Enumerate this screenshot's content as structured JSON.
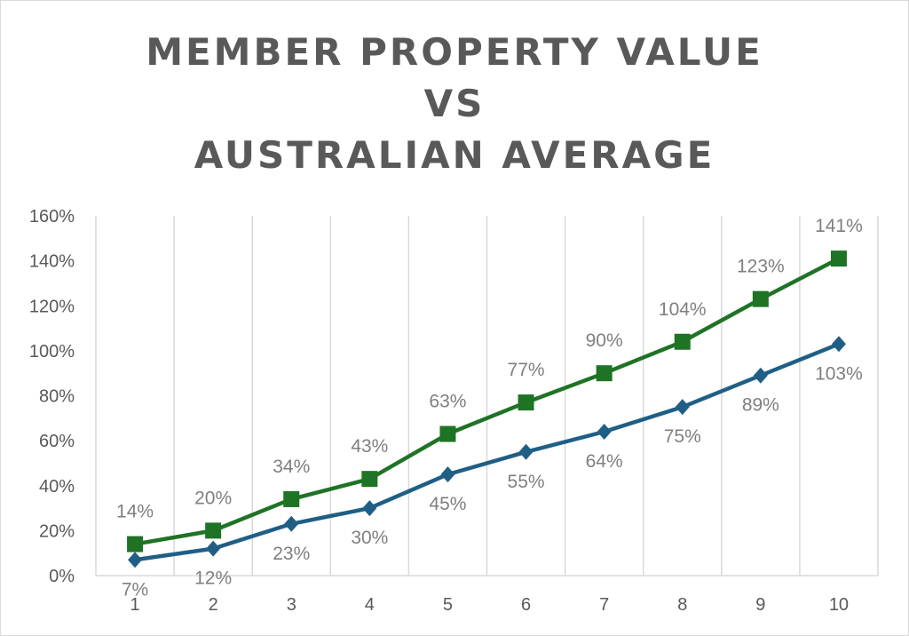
{
  "chart_data": {
    "type": "line",
    "title_lines": [
      "MEMBER PROPERTY VALUE",
      "VS",
      "AUSTRALIAN AVERAGE"
    ],
    "categories": [
      "1",
      "2",
      "3",
      "4",
      "5",
      "6",
      "7",
      "8",
      "9",
      "10"
    ],
    "series": [
      {
        "name": "Member Property Value",
        "color": "#1f7325",
        "marker": "square",
        "values": [
          14,
          20,
          34,
          43,
          63,
          77,
          90,
          104,
          123,
          141
        ],
        "labels": [
          "14%",
          "20%",
          "34%",
          "43%",
          "63%",
          "77%",
          "90%",
          "104%",
          "123%",
          "141%"
        ],
        "label_position": "above"
      },
      {
        "name": "Australian Average",
        "color": "#1f5f86",
        "marker": "diamond",
        "values": [
          7,
          12,
          23,
          30,
          45,
          55,
          64,
          75,
          89,
          103
        ],
        "labels": [
          "7%",
          "12%",
          "23%",
          "30%",
          "45%",
          "55%",
          "64%",
          "75%",
          "89%",
          "103%"
        ],
        "label_position": "below"
      }
    ],
    "y_ticks": [
      "0%",
      "20%",
      "40%",
      "60%",
      "80%",
      "100%",
      "120%",
      "140%",
      "160%"
    ],
    "ylim": [
      0,
      160
    ],
    "xlabel": "",
    "ylabel": "",
    "grid": "vertical",
    "legend": "none"
  }
}
